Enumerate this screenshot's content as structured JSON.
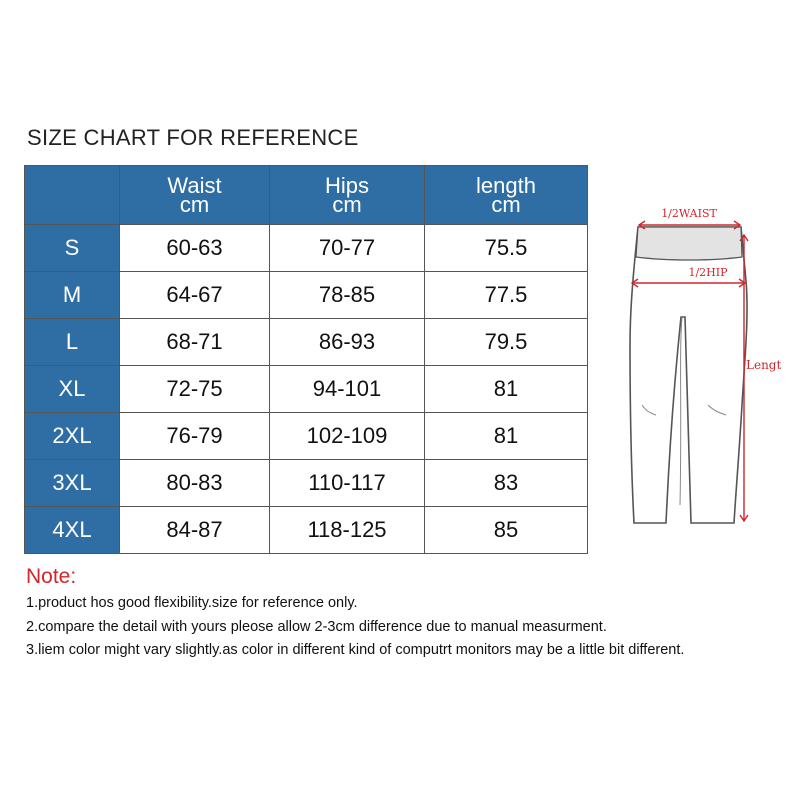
{
  "title": "SIZE CHART FOR REFERENCE",
  "table": {
    "headers": [
      {
        "name": "",
        "unit": ""
      },
      {
        "name": "Waist",
        "unit": "cm"
      },
      {
        "name": "Hips",
        "unit": "cm"
      },
      {
        "name": "length",
        "unit": "cm"
      }
    ],
    "rows": [
      {
        "size": "S",
        "waist": "60-63",
        "hips": "70-77",
        "length": "75.5"
      },
      {
        "size": "M",
        "waist": "64-67",
        "hips": "78-85",
        "length": "77.5"
      },
      {
        "size": "L",
        "waist": "68-71",
        "hips": "86-93",
        "length": "79.5"
      },
      {
        "size": "XL",
        "waist": "72-75",
        "hips": "94-101",
        "length": "81"
      },
      {
        "size": "2XL",
        "waist": "76-79",
        "hips": "102-109",
        "length": "81"
      },
      {
        "size": "3XL",
        "waist": "80-83",
        "hips": "110-117",
        "length": "83"
      },
      {
        "size": "4XL",
        "waist": "84-87",
        "hips": "118-125",
        "length": "85"
      }
    ]
  },
  "notes": {
    "title": "Note:",
    "items": [
      "1.product hos good flexibility.size for reference only.",
      "2.compare the detail with yours pleose allow 2-3cm difference due to manual measurment.",
      "3.liem color might vary slightly.as color in different kind of computrt monitors may be a little bit different."
    ]
  },
  "diagram": {
    "waist_label": "1/2WAIST",
    "hip_label": "1/2HIP",
    "length_label": "Lengt",
    "accent_color": "#d0262c"
  },
  "colors": {
    "header_blue": "#2f6ea5",
    "note_red": "#d0262c"
  }
}
